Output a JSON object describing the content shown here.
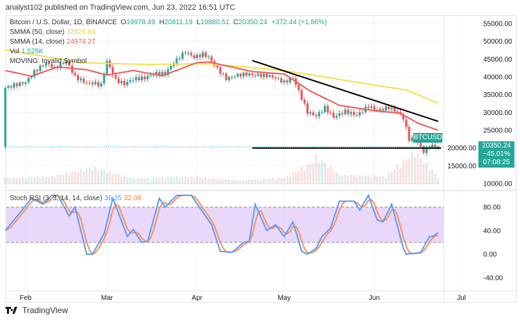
{
  "header": {
    "published": "analyst102 published on TradingView.com, Jun 23, 2022 16:51 UTC"
  },
  "legend": {
    "symbol": "Bitcoin / U.S. Dollar, 1D, BINANCE",
    "o_label": "O",
    "o": "19978.49",
    "h_label": "H",
    "h": "20811.19",
    "l_label": "L",
    "l": "19880.51",
    "c_label": "C",
    "c": "20350.24",
    "change": "+372.44 (+1.86%)",
    "smma50_label": "SMMA (50, close)",
    "smma50": "32626.83",
    "smma14_label": "SMMA (14, close)",
    "smma14": "24974.27",
    "vol_label": "Vol",
    "vol": "1.525K",
    "moving": "MOVING: Invalid Symbol",
    "stoch_label": "Stoch RSI (3, 3, 14, 14, close)",
    "stoch_k": "36.25",
    "stoch_d": "32.08"
  },
  "price_tag": {
    "symbol": "BTCUSD",
    "price": "20350.24",
    "change": "−45.01%",
    "countdown": "07:08:25"
  },
  "footer": {
    "brand": "TradingView"
  },
  "colors": {
    "up": "#26a69a",
    "down": "#ef5350",
    "smma50": "#f5e04a",
    "smma14": "#f05a5a",
    "k": "#5b9cf6",
    "d": "#f7925a",
    "band": "#e1c8fa",
    "trendline": "#000000"
  },
  "chart_data": [
    {
      "type": "candlestick",
      "title": "Bitcoin / U.S. Dollar, 1D, BINANCE",
      "yticks": [
        10000,
        15000,
        20000,
        25000,
        30000,
        35000,
        40000,
        45000,
        50000,
        55000
      ],
      "ylim": [
        10000,
        55000
      ],
      "xticks": [
        "Feb",
        "Mar",
        "Apr",
        "May",
        "Jun",
        "Jul"
      ],
      "grid": true,
      "closes": [
        [
          "2022-01-25",
          36900
        ],
        [
          "2022-01-28",
          37700
        ],
        [
          "2022-02-01",
          38500
        ],
        [
          "2022-02-04",
          41500
        ],
        [
          "2022-02-08",
          44000
        ],
        [
          "2022-02-11",
          42400
        ],
        [
          "2022-02-15",
          44500
        ],
        [
          "2022-02-18",
          40000
        ],
        [
          "2022-02-22",
          38200
        ],
        [
          "2022-02-24",
          38300
        ],
        [
          "2022-02-27",
          37700
        ],
        [
          "2022-03-01",
          44400
        ],
        [
          "2022-03-04",
          39100
        ],
        [
          "2022-03-07",
          38000
        ],
        [
          "2022-03-10",
          39400
        ],
        [
          "2022-03-14",
          39700
        ],
        [
          "2022-03-17",
          40900
        ],
        [
          "2022-03-21",
          41000
        ],
        [
          "2022-03-24",
          44000
        ],
        [
          "2022-03-28",
          47100
        ],
        [
          "2022-03-31",
          45500
        ],
        [
          "2022-04-03",
          46400
        ],
        [
          "2022-04-05",
          45500
        ],
        [
          "2022-04-08",
          42300
        ],
        [
          "2022-04-11",
          39500
        ],
        [
          "2022-04-15",
          40500
        ],
        [
          "2022-04-18",
          40800
        ],
        [
          "2022-04-21",
          40500
        ],
        [
          "2022-04-25",
          40400
        ],
        [
          "2022-04-28",
          39700
        ],
        [
          "2022-05-01",
          38500
        ],
        [
          "2022-05-04",
          39700
        ],
        [
          "2022-05-06",
          36000
        ],
        [
          "2022-05-09",
          30100
        ],
        [
          "2022-05-12",
          29000
        ],
        [
          "2022-05-15",
          31300
        ],
        [
          "2022-05-18",
          28700
        ],
        [
          "2022-05-22",
          30300
        ],
        [
          "2022-05-26",
          29200
        ],
        [
          "2022-05-30",
          31800
        ],
        [
          "2022-06-02",
          30500
        ],
        [
          "2022-06-06",
          31400
        ],
        [
          "2022-06-09",
          30100
        ],
        [
          "2022-06-11",
          28400
        ],
        [
          "2022-06-13",
          22500
        ],
        [
          "2022-06-15",
          22600
        ],
        [
          "2022-06-18",
          19000
        ],
        [
          "2022-06-20",
          20600
        ],
        [
          "2022-06-23",
          20350
        ]
      ],
      "smma50": [
        [
          "2022-01-25",
          47600
        ],
        [
          "2022-02-20",
          44000
        ],
        [
          "2022-03-15",
          43500
        ],
        [
          "2022-04-05",
          43700
        ],
        [
          "2022-05-01",
          41800
        ],
        [
          "2022-05-20",
          39300
        ],
        [
          "2022-06-01",
          37700
        ],
        [
          "2022-06-12",
          36300
        ],
        [
          "2022-06-23",
          32627
        ]
      ],
      "smma14": [
        [
          "2022-01-25",
          41800
        ],
        [
          "2022-02-03",
          40200
        ],
        [
          "2022-02-12",
          42800
        ],
        [
          "2022-02-22",
          42000
        ],
        [
          "2022-03-01",
          40500
        ],
        [
          "2022-03-10",
          41800
        ],
        [
          "2022-03-20",
          40300
        ],
        [
          "2022-04-01",
          44000
        ],
        [
          "2022-04-05",
          44200
        ],
        [
          "2022-04-20",
          41500
        ],
        [
          "2022-05-01",
          40800
        ],
        [
          "2022-05-10",
          36000
        ],
        [
          "2022-05-20",
          32000
        ],
        [
          "2022-06-01",
          30500
        ],
        [
          "2022-06-10",
          29800
        ],
        [
          "2022-06-16",
          27000
        ],
        [
          "2022-06-23",
          24974
        ]
      ],
      "volume_k": [
        [
          "2022-01-25",
          1.2
        ],
        [
          "2022-02-10",
          1.5
        ],
        [
          "2022-02-24",
          3.3
        ],
        [
          "2022-03-10",
          1.2
        ],
        [
          "2022-03-28",
          1.5
        ],
        [
          "2022-04-15",
          0.8
        ],
        [
          "2022-05-01",
          1.3
        ],
        [
          "2022-05-10",
          4.0
        ],
        [
          "2022-05-12",
          5.5
        ],
        [
          "2022-05-20",
          1.8
        ],
        [
          "2022-06-05",
          1.6
        ],
        [
          "2022-06-13",
          5.5
        ],
        [
          "2022-06-15",
          6.5
        ],
        [
          "2022-06-18",
          4.5
        ],
        [
          "2022-06-23",
          1.5
        ]
      ],
      "trendlines": [
        {
          "from": [
            "2022-04-20",
            44600
          ],
          "to": [
            "2022-06-23",
            27500
          ]
        },
        {
          "from": [
            "2022-04-20",
            20000
          ],
          "to": [
            "2022-06-24",
            20000
          ]
        }
      ]
    },
    {
      "type": "line",
      "title": "Stoch RSI (3, 3, 14, 14, close)",
      "yticks": [
        -40,
        0,
        40,
        80
      ],
      "ylim": [
        -55,
        110
      ],
      "band": [
        20,
        80
      ],
      "k": [
        [
          "2022-01-25",
          40
        ],
        [
          "2022-01-30",
          70
        ],
        [
          "2022-02-03",
          95
        ],
        [
          "2022-02-07",
          85
        ],
        [
          "2022-02-10",
          100
        ],
        [
          "2022-02-12",
          100
        ],
        [
          "2022-02-16",
          65
        ],
        [
          "2022-02-18",
          80
        ],
        [
          "2022-02-22",
          0
        ],
        [
          "2022-02-24",
          0
        ],
        [
          "2022-02-28",
          35
        ],
        [
          "2022-03-03",
          95
        ],
        [
          "2022-03-08",
          30
        ],
        [
          "2022-03-10",
          42
        ],
        [
          "2022-03-13",
          20
        ],
        [
          "2022-03-15",
          22
        ],
        [
          "2022-03-19",
          95
        ],
        [
          "2022-03-21",
          80
        ],
        [
          "2022-03-25",
          100
        ],
        [
          "2022-03-30",
          100
        ],
        [
          "2022-04-06",
          50
        ],
        [
          "2022-04-09",
          5
        ],
        [
          "2022-04-13",
          3
        ],
        [
          "2022-04-17",
          20
        ],
        [
          "2022-04-19",
          22
        ],
        [
          "2022-04-21",
          85
        ],
        [
          "2022-04-25",
          40
        ],
        [
          "2022-04-28",
          50
        ],
        [
          "2022-05-01",
          30
        ],
        [
          "2022-05-04",
          55
        ],
        [
          "2022-05-07",
          5
        ],
        [
          "2022-05-09",
          0
        ],
        [
          "2022-05-12",
          10
        ],
        [
          "2022-05-14",
          30
        ],
        [
          "2022-05-17",
          45
        ],
        [
          "2022-05-20",
          90
        ],
        [
          "2022-05-25",
          90
        ],
        [
          "2022-05-27",
          75
        ],
        [
          "2022-05-30",
          100
        ],
        [
          "2022-06-02",
          58
        ],
        [
          "2022-06-04",
          55
        ],
        [
          "2022-06-07",
          85
        ],
        [
          "2022-06-11",
          10
        ],
        [
          "2022-06-12",
          0
        ],
        [
          "2022-06-17",
          3
        ],
        [
          "2022-06-20",
          30
        ],
        [
          "2022-06-21",
          30
        ],
        [
          "2022-06-23",
          36.25
        ]
      ]
    }
  ]
}
